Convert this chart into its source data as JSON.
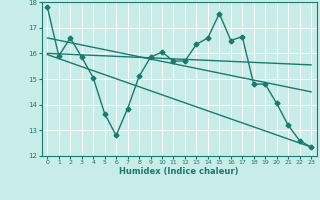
{
  "xlabel": "Humidex (Indice chaleur)",
  "background_color": "#c8ece8",
  "grid_color": "#ffffff",
  "line_color": "#1a7a6e",
  "xlim": [
    -0.5,
    23.5
  ],
  "ylim": [
    12,
    18
  ],
  "yticks": [
    12,
    13,
    14,
    15,
    16,
    17,
    18
  ],
  "xticks": [
    0,
    1,
    2,
    3,
    4,
    5,
    6,
    7,
    8,
    9,
    10,
    11,
    12,
    13,
    14,
    15,
    16,
    17,
    18,
    19,
    20,
    21,
    22,
    23
  ],
  "series1_x": [
    0,
    1,
    2,
    3,
    4,
    5,
    6,
    7,
    8,
    9,
    10,
    11,
    12,
    13,
    14,
    15,
    16,
    17,
    18,
    19,
    20,
    21,
    22,
    23
  ],
  "series1_y": [
    17.8,
    15.9,
    16.6,
    15.85,
    15.05,
    13.65,
    12.8,
    13.85,
    15.1,
    15.85,
    16.05,
    15.7,
    15.7,
    16.35,
    16.6,
    17.55,
    16.5,
    16.65,
    14.8,
    14.8,
    14.05,
    13.2,
    12.6,
    12.35
  ],
  "series2_x": [
    0,
    23
  ],
  "series2_y": [
    15.95,
    12.35
  ],
  "series3_x": [
    0,
    23
  ],
  "series3_y": [
    16.6,
    14.5
  ],
  "series4_x": [
    0,
    23
  ],
  "series4_y": [
    16.0,
    15.55
  ],
  "marker": "D",
  "marker_size": 2.5,
  "line_width": 1.0
}
